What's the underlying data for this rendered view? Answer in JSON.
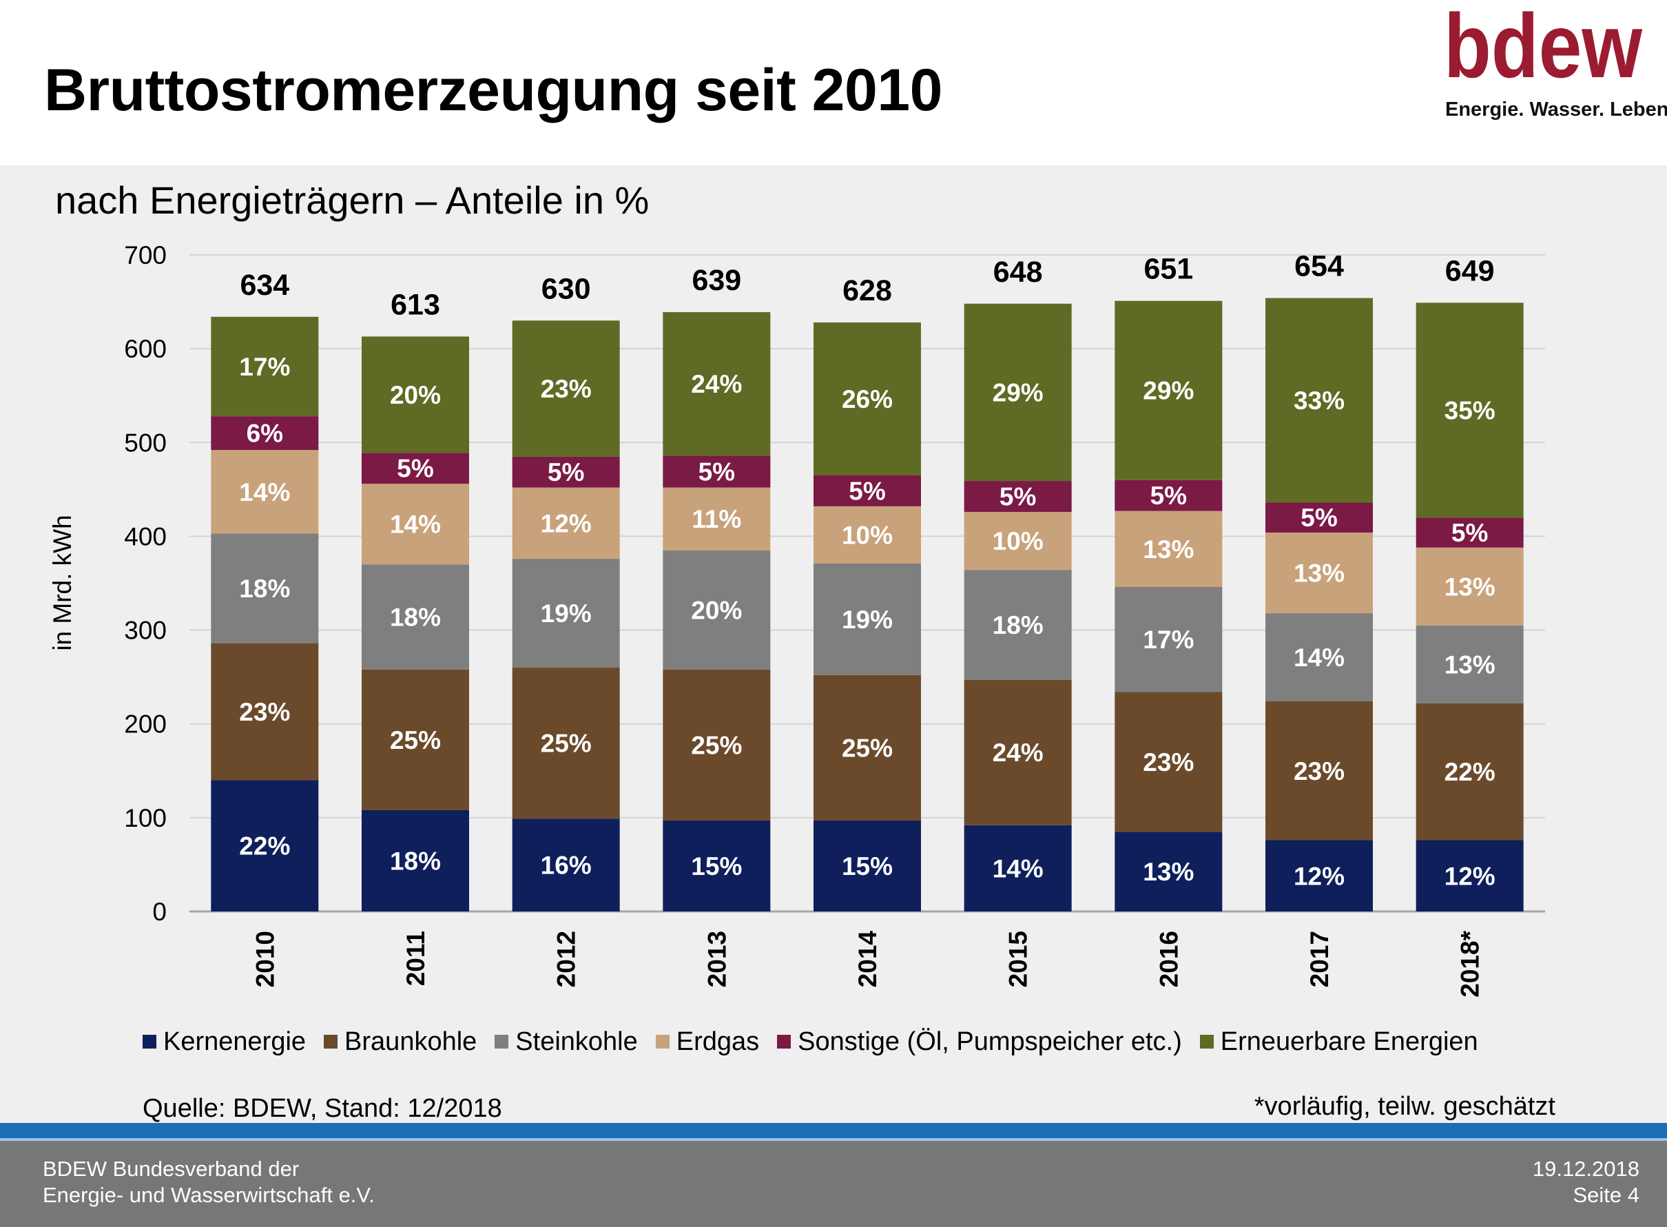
{
  "header": {
    "title": "Bruttostromerzeugung seit 2010",
    "logo_text": "bdew",
    "logo_tagline": "Energie. Wasser. Leben.",
    "logo_color": "#9b1b30"
  },
  "subtitle": "nach Energieträgern – Anteile in %",
  "chart_data": {
    "type": "bar",
    "stacked": true,
    "ylabel": "in Mrd. kWh",
    "ylim": [
      0,
      700
    ],
    "yticks": [
      0,
      100,
      200,
      300,
      400,
      500,
      600,
      700
    ],
    "grid": true,
    "legend_position": "bottom",
    "categories": [
      "2010",
      "2011",
      "2012",
      "2013",
      "2014",
      "2015",
      "2016",
      "2017",
      "2018*"
    ],
    "totals": [
      634,
      613,
      630,
      639,
      628,
      648,
      651,
      654,
      649
    ],
    "series": [
      {
        "name": "Kernenergie",
        "color": "#0e1f5b",
        "values": [
          140,
          108,
          99,
          97,
          97,
          92,
          85,
          76,
          76
        ],
        "labels": [
          "22%",
          "18%",
          "16%",
          "15%",
          "15%",
          "14%",
          "13%",
          "12%",
          "12%"
        ]
      },
      {
        "name": "Braunkohle",
        "color": "#6b4a2b",
        "values": [
          146,
          150,
          161,
          161,
          155,
          155,
          149,
          148,
          146
        ],
        "labels": [
          "23%",
          "25%",
          "25%",
          "25%",
          "25%",
          "24%",
          "23%",
          "23%",
          "22%"
        ]
      },
      {
        "name": "Steinkohle",
        "color": "#7f7f7f",
        "values": [
          117,
          112,
          116,
          127,
          119,
          117,
          112,
          94,
          83
        ],
        "labels": [
          "18%",
          "18%",
          "19%",
          "20%",
          "19%",
          "18%",
          "17%",
          "14%",
          "13%"
        ]
      },
      {
        "name": "Erdgas",
        "color": "#c8a27a",
        "values": [
          89,
          86,
          76,
          67,
          61,
          62,
          81,
          86,
          83
        ],
        "labels": [
          "14%",
          "14%",
          "12%",
          "11%",
          "10%",
          "10%",
          "13%",
          "13%",
          "13%"
        ]
      },
      {
        "name": "Sonstige (Öl, Pumpspeicher etc.)",
        "color": "#7a1a45",
        "values": [
          36,
          33,
          33,
          34,
          33,
          33,
          33,
          32,
          32
        ],
        "labels": [
          "6%",
          "5%",
          "5%",
          "5%",
          "5%",
          "5%",
          "5%",
          "5%",
          "5%"
        ]
      },
      {
        "name": "Erneuerbare Energien",
        "color": "#5f6b24",
        "values": [
          106,
          124,
          145,
          153,
          163,
          189,
          191,
          218,
          229
        ],
        "labels": [
          "17%",
          "20%",
          "23%",
          "24%",
          "26%",
          "29%",
          "29%",
          "33%",
          "35%"
        ]
      }
    ]
  },
  "legend": [
    {
      "label": "Kernenergie",
      "color": "#0e1f5b"
    },
    {
      "label": "Braunkohle",
      "color": "#6b4a2b"
    },
    {
      "label": "Steinkohle",
      "color": "#7f7f7f"
    },
    {
      "label": "Erdgas",
      "color": "#c8a27a"
    },
    {
      "label": "Sonstige (Öl, Pumpspeicher etc.)",
      "color": "#7a1a45"
    },
    {
      "label": "Erneuerbare Energien",
      "color": "#5f6b24"
    }
  ],
  "source": "Quelle: BDEW, Stand: 12/2018",
  "footnote": "*vorläufig, teilw. geschätzt",
  "footer": {
    "org_line1": "BDEW Bundesverband der",
    "org_line2": "Energie- und Wasserwirtschaft e.V.",
    "date": "19.12.2018",
    "page": "Seite 4"
  }
}
